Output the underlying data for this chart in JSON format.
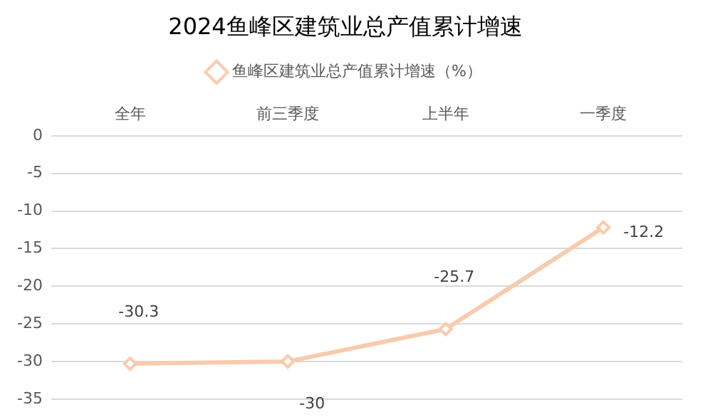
{
  "chart_data": {
    "type": "line",
    "title": "2024鱼峰区建筑业总产值累计增速",
    "categories": [
      "全年",
      "前三季度",
      "上半年",
      "一季度"
    ],
    "series": [
      {
        "name": "鱼峰区建筑业总产值累计增速（%）",
        "color": "#f8cbad",
        "values": [
          -30.3,
          -30,
          -25.7,
          -12.2
        ]
      }
    ],
    "ylim": [
      -35,
      0
    ],
    "yticks": [
      0,
      -5,
      -10,
      -15,
      -20,
      -25,
      -30,
      -35
    ],
    "grid": "y",
    "legend": "top",
    "marker": "diamond",
    "data_labels": true
  }
}
